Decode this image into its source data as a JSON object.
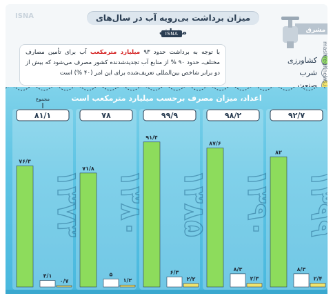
{
  "header": {
    "title": "میزان برداشت بی‌رویه آب در سال‌های مختلف",
    "source_badge": "ISNA",
    "watermark": "ISNA",
    "side_mark": "mashreghnews.ir",
    "tap_logo": "مشرق"
  },
  "note": {
    "part1": "با توجه به برداشت حدود ۹۳",
    "highlight": "میلیارد مترمکعب",
    "part2": "آب برای تأمین مصارف مختلف، حدود ۹۰ % از منابع آب تجدیدشدنده کشور مصرف می‌شود که بیش از دو برابر شاخص بین‌المللی تعریف‌شده برای این امر (۴۰ %) است"
  },
  "legend": [
    {
      "label": "کشاورزی",
      "color": "#9be36a",
      "icon": "drop-icon"
    },
    {
      "label": "شرب",
      "color": "#ffffff",
      "icon": "drop-icon"
    },
    {
      "label": "صنعت",
      "color": "#f2e46c",
      "icon": "drop-icon"
    }
  ],
  "colors": {
    "agriculture": "#8ddc5c",
    "drinking": "#ffffff",
    "industry": "#f2e46c"
  },
  "chart_data": {
    "type": "bar",
    "title": "اعداد، میزان مصرف برحسب میلیارد مترمکعب است",
    "total_label": "مجموع",
    "categories": [
      "۱۳۷۳",
      "۱۳۸۰",
      "۱۳۸۵",
      "۱۳۹۰",
      "۱۳۹۹"
    ],
    "totals": [
      "۸۱/۱",
      "۷۸",
      "۹۹/۹",
      "۹۸/۲",
      "۹۲/۷"
    ],
    "series": [
      {
        "name": "کشاورزی",
        "values": [
          76.3,
          71.8,
          91.4,
          87.6,
          82
        ],
        "labels": [
          "۷۶/۳",
          "۷۱/۸",
          "۹۱/۴",
          "۸۷/۶",
          "۸۲"
        ]
      },
      {
        "name": "شرب",
        "values": [
          4.1,
          5,
          6.3,
          8.3,
          8.3
        ],
        "labels": [
          "۴/۱",
          "۵",
          "۶/۳",
          "۸/۳",
          "۸/۳"
        ]
      },
      {
        "name": "صنعت",
        "values": [
          0.7,
          1.2,
          2.2,
          2.3,
          2.4
        ],
        "labels": [
          "۰/۷",
          "۱/۲",
          "۲/۲",
          "۲/۳",
          "۲/۴"
        ]
      }
    ],
    "ylim": [
      0,
      100
    ]
  }
}
